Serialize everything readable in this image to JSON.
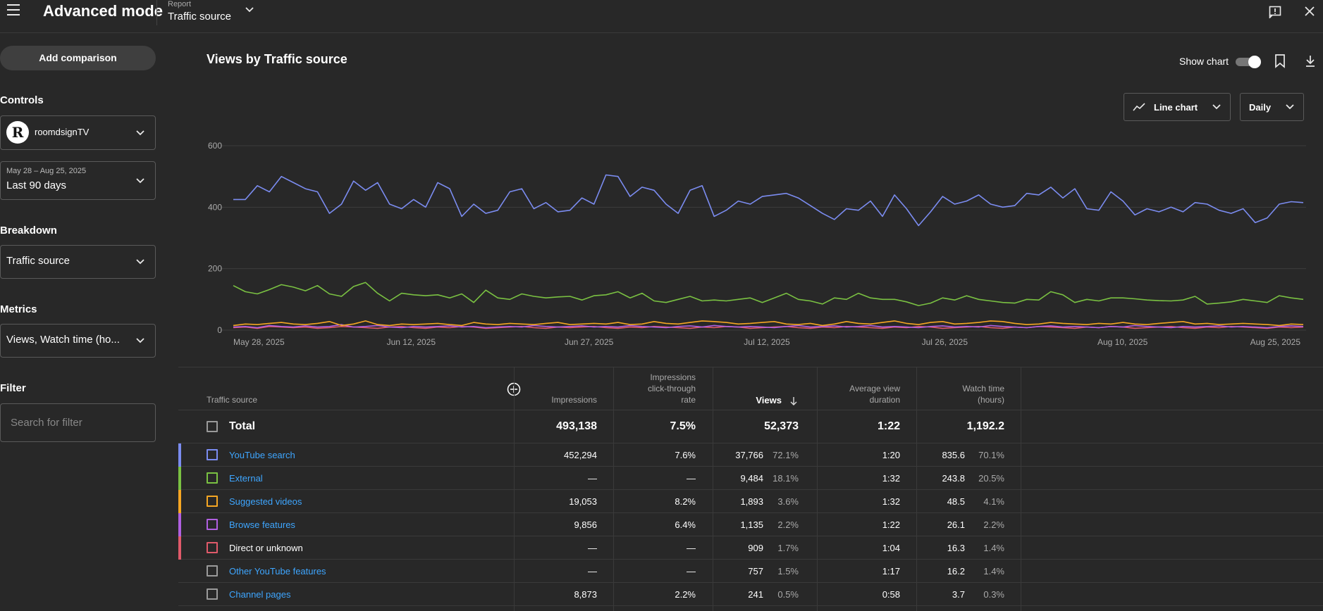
{
  "header": {
    "title": "Advanced mode",
    "report_label": "Report",
    "report_value": "Traffic source"
  },
  "sidebar": {
    "add_comparison": "Add comparison",
    "controls_label": "Controls",
    "channel_name": "roomdsignTV",
    "date_range": "May 28 – Aug 25, 2025",
    "date_preset": "Last 90 days",
    "breakdown_label": "Breakdown",
    "breakdown_value": "Traffic source",
    "metrics_label": "Metrics",
    "metrics_value": "Views, Watch time (ho...",
    "filter_label": "Filter",
    "filter_placeholder": "Search for filter"
  },
  "main": {
    "chart_title": "Views by Traffic source",
    "show_chart_label": "Show chart",
    "show_chart_on": true,
    "chart_type_label": "Line chart",
    "granularity_label": "Daily"
  },
  "chart_data": {
    "type": "line",
    "title": "Views by Traffic source",
    "ylim": [
      0,
      600
    ],
    "y_ticks": [
      "600",
      "400",
      "200",
      "0"
    ],
    "x_ticks": [
      "May 28, 2025",
      "Jun 12, 2025",
      "Jun 27, 2025",
      "Jul 12, 2025",
      "Jul 26, 2025",
      "Aug 10, 2025",
      "Aug 25, 2025"
    ],
    "grid": true,
    "series": [
      {
        "color": "#7b8cf0",
        "values": [
          425,
          425,
          470,
          450,
          500,
          480,
          460,
          450,
          380,
          410,
          485,
          455,
          480,
          410,
          395,
          425,
          400,
          480,
          460,
          370,
          410,
          380,
          390,
          450,
          460,
          395,
          415,
          385,
          390,
          430,
          410,
          505,
          500,
          435,
          465,
          455,
          410,
          380,
          455,
          470,
          370,
          390,
          420,
          410,
          435,
          440,
          445,
          430,
          405,
          380,
          360,
          395,
          390,
          420,
          370,
          440,
          395,
          340,
          385,
          435,
          410,
          420,
          440,
          410,
          400,
          405,
          445,
          440,
          465,
          430,
          460,
          395,
          390,
          450,
          420,
          375,
          395,
          385,
          400,
          385,
          415,
          410,
          390,
          380,
          395,
          350,
          365,
          410,
          418,
          415
        ]
      },
      {
        "color": "#7ac142",
        "values": [
          145,
          125,
          118,
          132,
          148,
          140,
          128,
          145,
          118,
          110,
          142,
          155,
          120,
          95,
          120,
          115,
          112,
          115,
          105,
          118,
          90,
          130,
          105,
          100,
          118,
          110,
          105,
          108,
          110,
          98,
          112,
          115,
          125,
          105,
          120,
          95,
          90,
          100,
          110,
          95,
          98,
          95,
          100,
          105,
          90,
          105,
          120,
          100,
          95,
          85,
          105,
          100,
          120,
          105,
          100,
          100,
          92,
          80,
          88,
          105,
          98,
          112,
          100,
          95,
          90,
          88,
          100,
          98,
          125,
          115,
          90,
          100,
          95,
          105,
          105,
          102,
          98,
          96,
          95,
          98,
          110,
          85,
          88,
          92,
          100,
          95,
          90,
          112,
          105,
          100
        ]
      },
      {
        "color": "#f5a623",
        "values": [
          15,
          20,
          18,
          22,
          25,
          20,
          18,
          22,
          28,
          15,
          20,
          30,
          18,
          15,
          20,
          18,
          20,
          22,
          18,
          15,
          25,
          20,
          18,
          22,
          20,
          18,
          22,
          25,
          18,
          20,
          22,
          20,
          25,
          18,
          20,
          28,
          22,
          20,
          25,
          30,
          28,
          25,
          20,
          22,
          25,
          28,
          20,
          18,
          22,
          15,
          20,
          28,
          22,
          20,
          25,
          30,
          22,
          18,
          25,
          28,
          20,
          22,
          25,
          30,
          28,
          22,
          18,
          20,
          25,
          22,
          20,
          18,
          22,
          20,
          25,
          20,
          18,
          22,
          25,
          28,
          20,
          22,
          18,
          20,
          22,
          20,
          18,
          15,
          20,
          18
        ]
      },
      {
        "color": "#b060e0",
        "values": [
          10,
          12,
          8,
          15,
          12,
          10,
          14,
          10,
          12,
          18,
          10,
          12,
          15,
          10,
          8,
          12,
          10,
          12,
          14,
          10,
          12,
          8,
          10,
          12,
          10,
          15,
          12,
          10,
          12,
          14,
          10,
          12,
          10,
          15,
          12,
          10,
          8,
          12,
          14,
          10,
          15,
          12,
          10,
          12,
          10,
          8,
          12,
          15,
          10,
          12,
          14,
          10,
          12,
          15,
          10,
          12,
          10,
          8,
          12,
          14,
          10,
          12,
          10,
          15,
          12,
          10,
          8,
          12,
          14,
          10,
          12,
          10,
          8,
          12,
          10,
          15,
          12,
          10,
          8,
          12,
          10,
          12,
          14,
          10,
          12,
          10,
          8,
          12,
          14,
          12
        ]
      },
      {
        "color": "#e05a6a",
        "values": [
          8,
          10,
          6,
          12,
          10,
          8,
          10,
          6,
          8,
          12,
          10,
          8,
          6,
          10,
          12,
          8,
          6,
          10,
          8,
          12,
          10,
          6,
          8,
          10,
          12,
          8,
          6,
          10,
          8,
          10,
          12,
          8,
          6,
          10,
          8,
          12,
          10,
          8,
          6,
          10,
          8,
          12,
          10,
          6,
          8,
          10,
          12,
          8,
          6,
          10,
          8,
          12,
          10,
          8,
          6,
          10,
          8,
          12,
          10,
          6,
          8,
          10,
          12,
          8,
          6,
          10,
          8,
          12,
          10,
          8,
          6,
          10,
          8,
          12,
          10,
          6,
          8,
          10,
          12,
          8,
          6,
          10,
          8,
          12,
          10,
          8,
          6,
          10,
          8,
          10
        ]
      }
    ]
  },
  "table": {
    "headers": {
      "source": "Traffic source",
      "impressions": "Impressions",
      "ctr_1": "Impressions",
      "ctr_2": "click-through",
      "ctr_3": "rate",
      "views": "Views",
      "avd_1": "Average view",
      "avd_2": "duration",
      "wt_1": "Watch time",
      "wt_2": "(hours)"
    },
    "total": {
      "label": "Total",
      "impressions": "493,138",
      "ctr": "7.5%",
      "views": "52,373",
      "avd": "1:22",
      "wt": "1,192.2"
    },
    "rows": [
      {
        "label": "YouTube search",
        "color": "#7b8cf0",
        "link": true,
        "impressions": "452,294",
        "ctr": "7.6%",
        "views": "37,766",
        "views_pct": "72.1%",
        "avd": "1:20",
        "wt": "835.6",
        "wt_pct": "70.1%"
      },
      {
        "label": "External",
        "color": "#7ac142",
        "link": true,
        "impressions": "—",
        "ctr": "—",
        "views": "9,484",
        "views_pct": "18.1%",
        "avd": "1:32",
        "wt": "243.8",
        "wt_pct": "20.5%"
      },
      {
        "label": "Suggested videos",
        "color": "#f5a623",
        "link": true,
        "impressions": "19,053",
        "ctr": "8.2%",
        "views": "1,893",
        "views_pct": "3.6%",
        "avd": "1:32",
        "wt": "48.5",
        "wt_pct": "4.1%"
      },
      {
        "label": "Browse features",
        "color": "#b060e0",
        "link": true,
        "impressions": "9,856",
        "ctr": "6.4%",
        "views": "1,135",
        "views_pct": "2.2%",
        "avd": "1:22",
        "wt": "26.1",
        "wt_pct": "2.2%"
      },
      {
        "label": "Direct or unknown",
        "color": "#e05a6a",
        "link": false,
        "impressions": "—",
        "ctr": "—",
        "views": "909",
        "views_pct": "1.7%",
        "avd": "1:04",
        "wt": "16.3",
        "wt_pct": "1.4%"
      },
      {
        "label": "Other YouTube features",
        "color": "",
        "link": true,
        "impressions": "—",
        "ctr": "—",
        "views": "757",
        "views_pct": "1.5%",
        "avd": "1:17",
        "wt": "16.2",
        "wt_pct": "1.4%"
      },
      {
        "label": "Channel pages",
        "color": "",
        "link": true,
        "impressions": "8,873",
        "ctr": "2.2%",
        "views": "241",
        "views_pct": "0.5%",
        "avd": "0:58",
        "wt": "3.7",
        "wt_pct": "0.3%"
      }
    ]
  }
}
